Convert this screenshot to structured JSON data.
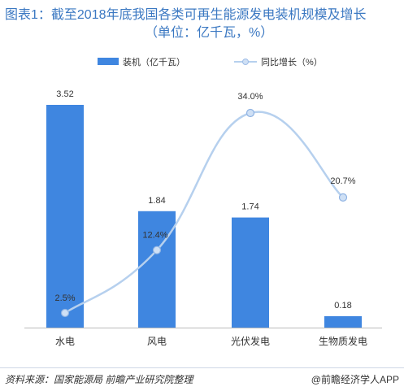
{
  "title_line1": "图表1：截至2018年底我国各类可再生能源发电装机规模及增长",
  "title_line2": "（单位：亿千瓦，%）",
  "footer": {
    "source": "资料来源：国家能源局 前瞻产业研究院整理",
    "brand": "@前瞻经济学人APP"
  },
  "colors": {
    "bar": "#3f86e0",
    "line": "#b6d0ee",
    "marker_fill": "#cfe0f5",
    "marker_stroke": "#ffffff",
    "title": "#3b78c2"
  },
  "chart_data": {
    "type": "bar",
    "categories": [
      "水电",
      "风电",
      "光伏发电",
      "生物质发电"
    ],
    "series": [
      {
        "name": "装机（亿千瓦）",
        "type": "bar",
        "values": [
          3.52,
          1.84,
          1.74,
          0.18
        ],
        "labels": [
          "3.52",
          "1.84",
          "1.74",
          "0.18"
        ]
      },
      {
        "name": "同比增长（%）",
        "type": "line",
        "smooth": true,
        "values": [
          2.5,
          12.4,
          34.0,
          20.7
        ],
        "labels": [
          "2.5%",
          "12.4%",
          "34.0%",
          "20.7%"
        ]
      }
    ],
    "ylim_bar": [
      0,
      4
    ],
    "ylim_line": [
      0,
      40
    ],
    "grid": false,
    "legend_position": "top"
  }
}
